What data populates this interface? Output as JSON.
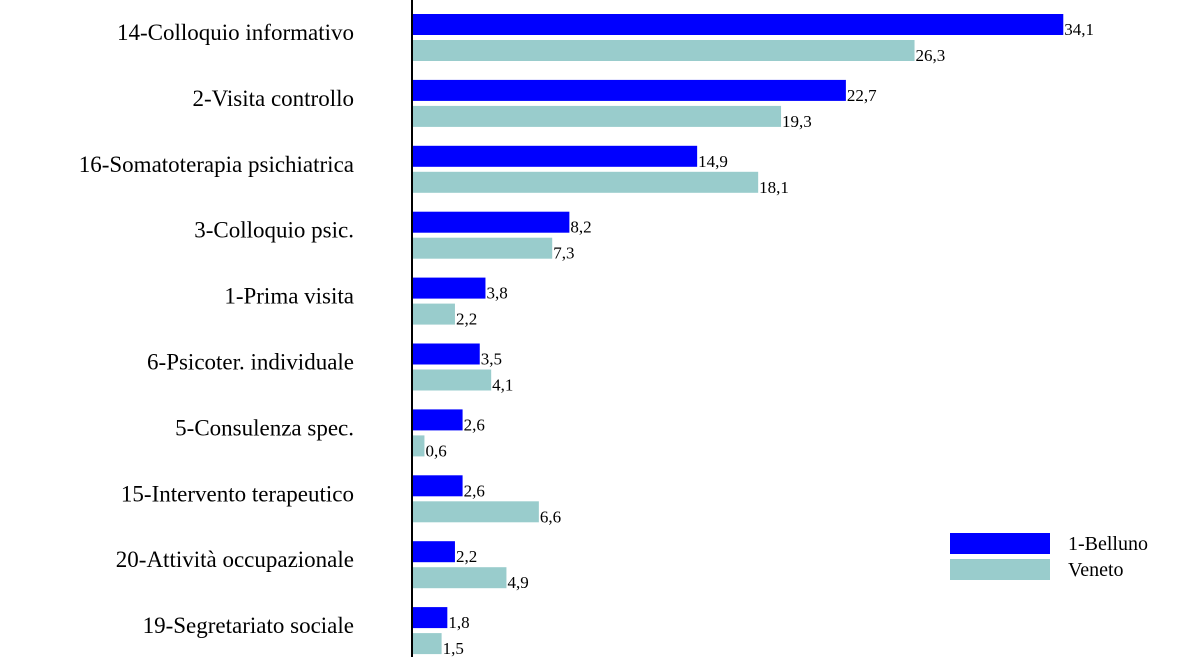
{
  "chart_data": {
    "type": "bar",
    "orientation": "horizontal",
    "categories": [
      "14-Colloquio informativo",
      "2-Visita controllo",
      "16-Somatoterapia psichiatrica",
      "3-Colloquio psic.",
      "1-Prima visita",
      "6-Psicoter. individuale",
      "5-Consulenza spec.",
      "15-Intervento terapeutico",
      "20-Attività occupazionale",
      "19-Segretariato sociale"
    ],
    "series": [
      {
        "name": "1-Belluno",
        "color": "#0000ff",
        "values": [
          34.1,
          22.7,
          14.9,
          8.2,
          3.8,
          3.5,
          2.6,
          2.6,
          2.2,
          1.8
        ],
        "value_labels": [
          "34,1",
          "22,7",
          "14,9",
          "8,2",
          "3,8",
          "3,5",
          "2,6",
          "2,6",
          "2,2",
          "1,8"
        ]
      },
      {
        "name": "Veneto",
        "color": "#99cccc",
        "values": [
          26.3,
          19.3,
          18.1,
          7.3,
          2.2,
          4.1,
          0.6,
          6.6,
          4.9,
          1.5
        ],
        "value_labels": [
          "26,3",
          "19,3",
          "18,1",
          "7,3",
          "2,2",
          "4,1",
          "0,6",
          "6,6",
          "4,9",
          "1,5"
        ]
      }
    ],
    "legend": "right"
  }
}
